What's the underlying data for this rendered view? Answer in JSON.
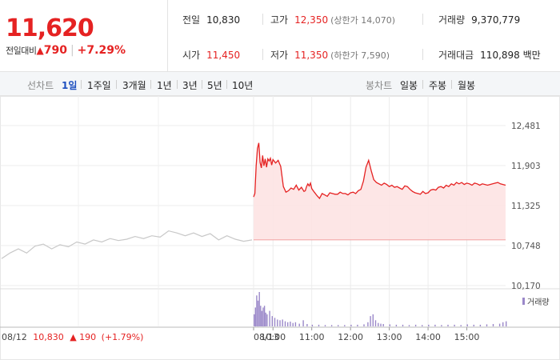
{
  "quote": {
    "price": "11,620",
    "change_label": "전일대비",
    "change_arrow": "▲",
    "change": "790",
    "change_rate": "+7.29%",
    "prev_label": "전일",
    "prev": "10,830",
    "high_label": "고가",
    "high": "12,350",
    "upper_label": "(상한가 14,070)",
    "volume_label": "거래량",
    "volume": "9,370,779",
    "open_label": "시가",
    "open": "11,450",
    "low_label": "저가",
    "low": "11,350",
    "lower_label": "(하한가 7,590)",
    "amount_label": "거래대금",
    "amount": "110,898 백만"
  },
  "tabs": {
    "line_label": "선차트",
    "line_items": [
      "1일",
      "1주일",
      "3개월",
      "1년",
      "3년",
      "5년",
      "10년"
    ],
    "selected": "1일",
    "candle_label": "봉차트",
    "candle_items": [
      "일봉",
      "주봉",
      "월봉"
    ]
  },
  "colors": {
    "up": "#e52222",
    "down": "#2a56c6",
    "prev_line": "#c8c8c8",
    "volume": "#9b88c9",
    "area": "#fde3e3"
  },
  "chart_data": {
    "type": "line",
    "ylim": [
      10170,
      12481
    ],
    "y_ticks": [
      "12,481",
      "11,903",
      "11,325",
      "10,748",
      "10,170"
    ],
    "x_ticks": [
      "08/13",
      "10:00",
      "11:00",
      "12:00",
      "13:00",
      "14:00",
      "15:00"
    ],
    "prev_day_caption": "08/12",
    "prev_day_close": "10,830",
    "prev_day_arrow": "▲",
    "prev_day_change": "190",
    "prev_day_rate": "(+1.79%)",
    "volume_legend": "거래량",
    "prev_close": 10830,
    "series": [
      {
        "x": [
          0,
          1,
          2,
          3,
          4,
          5,
          6,
          7,
          8,
          9,
          10,
          11,
          12,
          13,
          14,
          15,
          16,
          17,
          18,
          19,
          20,
          21,
          22,
          23,
          24,
          25,
          26,
          27,
          28,
          29,
          30
        ],
        "values": [
          10560,
          10640,
          10700,
          10640,
          10740,
          10770,
          10700,
          10760,
          10730,
          10800,
          10770,
          10830,
          10800,
          10850,
          10820,
          10840,
          10880,
          10850,
          10890,
          10870,
          10960,
          10930,
          10890,
          10930,
          10880,
          10920,
          10830,
          10890,
          10840,
          10810,
          10830
        ]
      },
      {
        "x": [
          0,
          2,
          4,
          6,
          8,
          10,
          12,
          14,
          16,
          18,
          20,
          22,
          24,
          26,
          28,
          30,
          34,
          38,
          42,
          46,
          50,
          54,
          58,
          62,
          66,
          70,
          74,
          78,
          80,
          82,
          84,
          86,
          88,
          90,
          94,
          98,
          102,
          106,
          110,
          114,
          118,
          122,
          126,
          130,
          134,
          138,
          142,
          146,
          150,
          154,
          158,
          162,
          166,
          170,
          174,
          178,
          182,
          186,
          190,
          194,
          198,
          202,
          206,
          210,
          214,
          218,
          222,
          226,
          230,
          234,
          238,
          242,
          246,
          250,
          254,
          258,
          262,
          266,
          270,
          274,
          278,
          282,
          286,
          290,
          294,
          298,
          302,
          306,
          310,
          314,
          318,
          322,
          326,
          330,
          334,
          338,
          342,
          346,
          350,
          354,
          358,
          362,
          366,
          370,
          374,
          378,
          382,
          390
        ],
        "values": [
          11450,
          11500,
          11900,
          12150,
          12230,
          11950,
          11870,
          12050,
          11900,
          12000,
          11880,
          12000,
          11970,
          12010,
          11910,
          11990,
          11940,
          11980,
          11890,
          11600,
          11520,
          11540,
          11580,
          11560,
          11620,
          11550,
          11590,
          11530,
          11540,
          11600,
          11640,
          11610,
          11650,
          11570,
          11520,
          11470,
          11430,
          11500,
          11480,
          11460,
          11510,
          11500,
          11490,
          11490,
          11520,
          11500,
          11500,
          11480,
          11510,
          11520,
          11500,
          11540,
          11560,
          11680,
          11880,
          11980,
          11830,
          11700,
          11660,
          11640,
          11620,
          11650,
          11630,
          11600,
          11620,
          11590,
          11600,
          11580,
          11560,
          11610,
          11600,
          11560,
          11530,
          11510,
          11500,
          11490,
          11530,
          11500,
          11510,
          11550,
          11560,
          11550,
          11590,
          11600,
          11580,
          11620,
          11600,
          11640,
          11620,
          11660,
          11640,
          11660,
          11630,
          11650,
          11640,
          11620,
          11650,
          11640,
          11620,
          11640,
          11630,
          11620,
          11630,
          11640,
          11650,
          11660,
          11640,
          11620
        ]
      }
    ],
    "volume": {
      "x": [
        0,
        2,
        4,
        6,
        8,
        10,
        12,
        14,
        16,
        18,
        20,
        24,
        28,
        32,
        36,
        40,
        44,
        48,
        52,
        56,
        60,
        64,
        70,
        76,
        82,
        90,
        100,
        110,
        120,
        130,
        140,
        150,
        160,
        170,
        176,
        180,
        184,
        188,
        192,
        196,
        200,
        210,
        220,
        230,
        240,
        250,
        260,
        270,
        280,
        290,
        300,
        310,
        320,
        330,
        340,
        350,
        360,
        370,
        380,
        385,
        390
      ],
      "values": [
        0.35,
        0.55,
        0.9,
        0.75,
        1.0,
        0.6,
        0.45,
        0.55,
        0.6,
        0.4,
        0.35,
        0.45,
        0.3,
        0.25,
        0.2,
        0.18,
        0.2,
        0.15,
        0.12,
        0.14,
        0.1,
        0.12,
        0.08,
        0.18,
        0.07,
        0.05,
        0.05,
        0.04,
        0.04,
        0.04,
        0.04,
        0.05,
        0.05,
        0.06,
        0.12,
        0.3,
        0.35,
        0.18,
        0.1,
        0.08,
        0.07,
        0.06,
        0.05,
        0.05,
        0.04,
        0.05,
        0.04,
        0.05,
        0.05,
        0.04,
        0.05,
        0.05,
        0.04,
        0.06,
        0.05,
        0.05,
        0.06,
        0.07,
        0.08,
        0.12,
        0.15
      ]
    }
  }
}
